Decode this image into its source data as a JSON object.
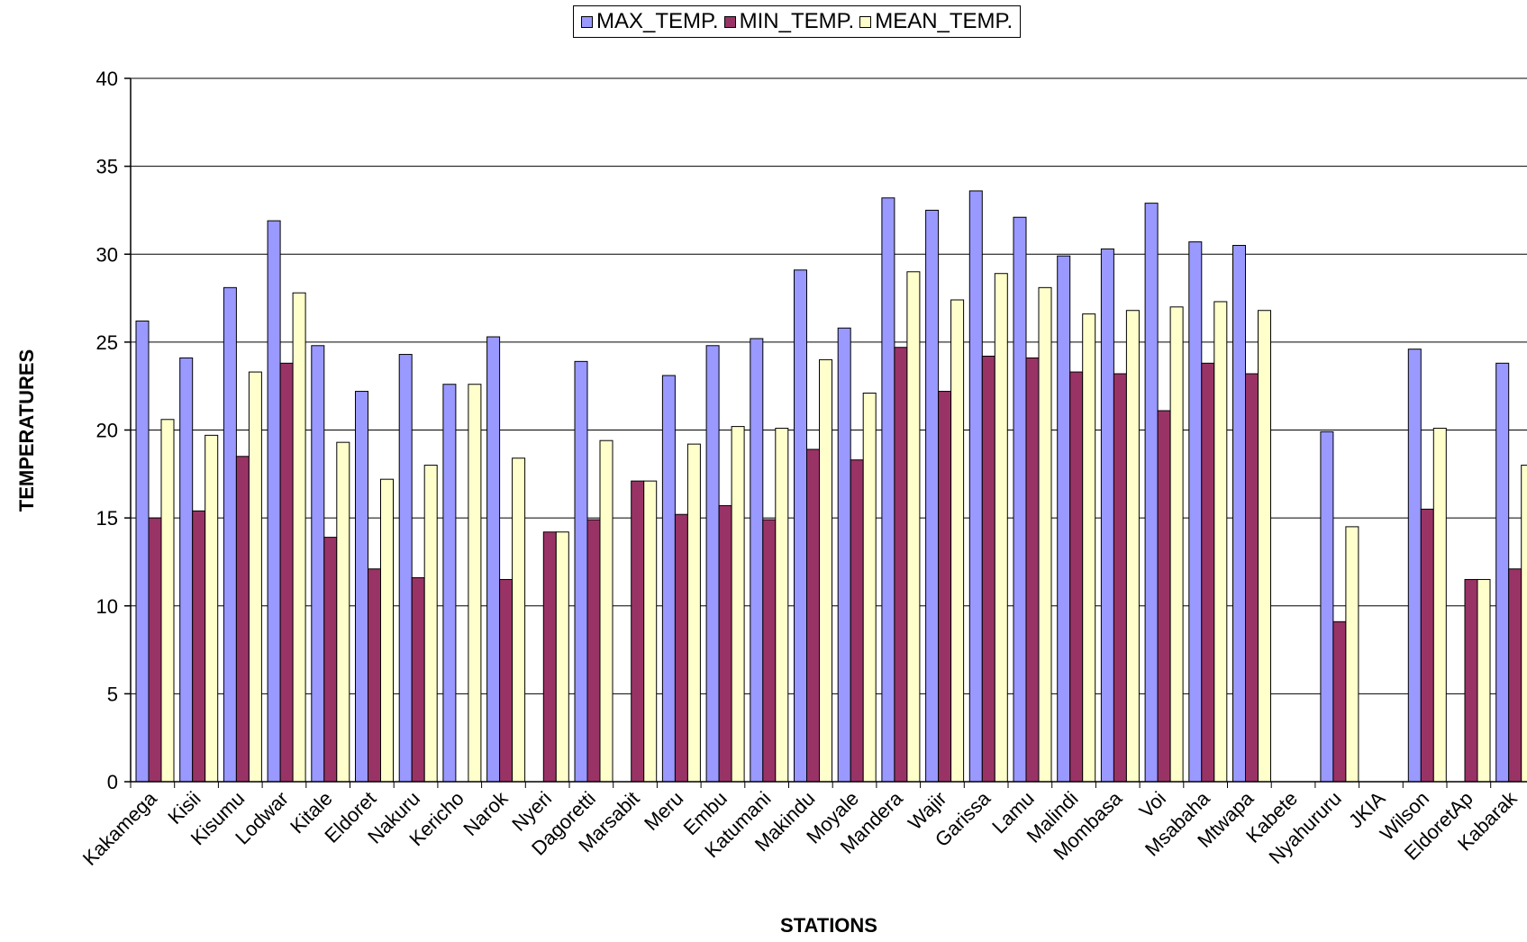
{
  "chart_data": {
    "type": "bar",
    "xlabel": "STATIONS",
    "ylabel": "TEMPERATURES",
    "ylim": [
      0,
      40
    ],
    "yticks": [
      0,
      5,
      10,
      15,
      20,
      25,
      30,
      35,
      40
    ],
    "grid": true,
    "legend_position": "top",
    "categories": [
      "Kakamega",
      "Kisii",
      "Kisumu",
      "Lodwar",
      "Kitale",
      "Eldoret",
      "Nakuru",
      "Kericho",
      "Narok",
      "Nyeri",
      "Dagoretti",
      "Marsabit",
      "Meru",
      "Embu",
      "Katumani",
      "Makindu",
      "Moyale",
      "Mandera",
      "Wajir",
      "Garissa",
      "Lamu",
      "Malindi",
      "Mombasa",
      "Voi",
      "Msabaha",
      "Mtwapa",
      "Kabete",
      "Nyahururu",
      "JKIA",
      "Wilson",
      "EldoretAp",
      "Kabarak"
    ],
    "series": [
      {
        "name": "MAX_TEMP.",
        "color": "#9999ff",
        "values": [
          26.2,
          24.1,
          28.1,
          31.9,
          24.8,
          22.2,
          24.3,
          22.6,
          25.3,
          null,
          23.9,
          null,
          23.1,
          24.8,
          25.2,
          29.1,
          25.8,
          33.2,
          32.5,
          33.6,
          32.1,
          29.9,
          30.3,
          32.9,
          30.7,
          30.5,
          null,
          19.9,
          null,
          24.6,
          null,
          23.8
        ]
      },
      {
        "name": "MIN_TEMP.",
        "color": "#993366",
        "values": [
          15.0,
          15.4,
          18.5,
          23.8,
          13.9,
          12.1,
          11.6,
          null,
          11.5,
          14.2,
          14.9,
          17.1,
          15.2,
          15.7,
          14.9,
          18.9,
          18.3,
          24.7,
          22.2,
          24.2,
          24.1,
          23.3,
          23.2,
          21.1,
          23.8,
          23.2,
          null,
          9.1,
          null,
          15.5,
          11.5,
          12.1
        ]
      },
      {
        "name": "MEAN_TEMP.",
        "color": "#ffffcc",
        "values": [
          20.6,
          19.7,
          23.3,
          27.8,
          19.3,
          17.2,
          18.0,
          22.6,
          18.4,
          14.2,
          19.4,
          17.1,
          19.2,
          20.2,
          20.1,
          24.0,
          22.1,
          29.0,
          27.4,
          28.9,
          28.1,
          26.6,
          26.8,
          27.0,
          27.3,
          26.8,
          null,
          14.5,
          null,
          20.1,
          11.5,
          18.0
        ]
      }
    ]
  }
}
